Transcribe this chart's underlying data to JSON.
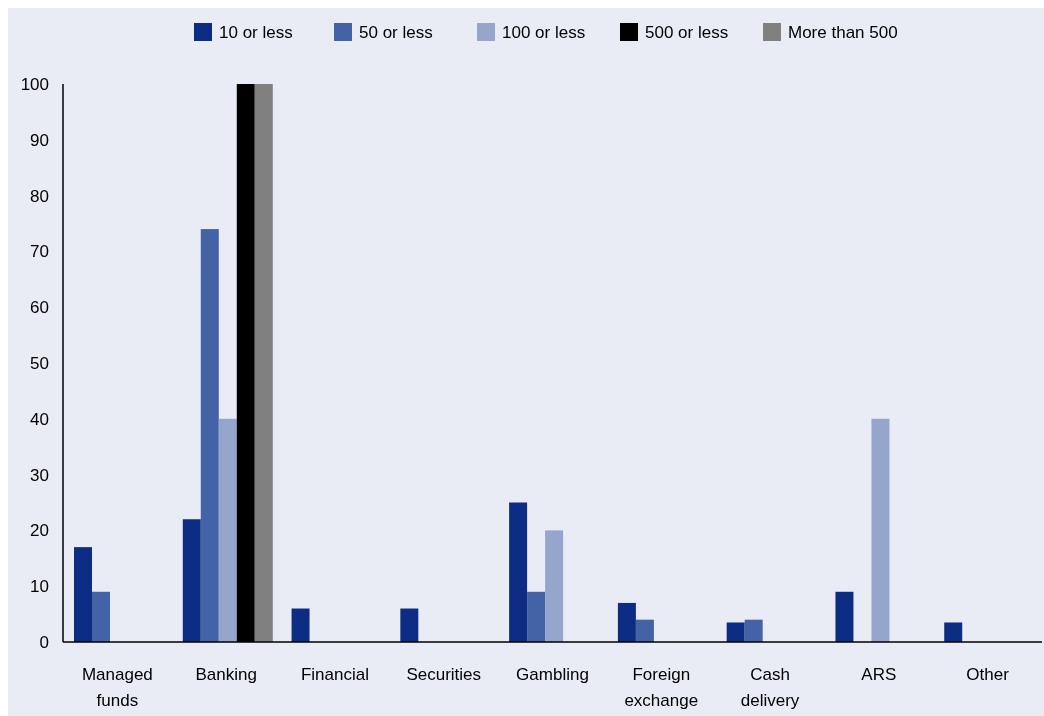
{
  "chart_data": {
    "type": "bar",
    "categories": [
      "Managed\nfunds",
      "Banking",
      "Financial",
      "Securities",
      "Gambling",
      "Foreign\nexchange",
      "Cash\ndelivery",
      "ARS",
      "Other"
    ],
    "series": [
      {
        "name": "10 or less",
        "color": "#0c2d83",
        "values": [
          17,
          22,
          6,
          6,
          25,
          7,
          3.5,
          9,
          3.5
        ]
      },
      {
        "name": "50 or less",
        "color": "#4462a6",
        "values": [
          9,
          74,
          null,
          null,
          9,
          4,
          4,
          null,
          null
        ]
      },
      {
        "name": "100 or less",
        "color": "#95a5cc",
        "values": [
          null,
          40,
          null,
          null,
          20,
          null,
          null,
          40,
          null
        ]
      },
      {
        "name": "500 or less",
        "color": "#000000",
        "values": [
          null,
          100,
          null,
          null,
          null,
          null,
          null,
          null,
          null
        ]
      },
      {
        "name": "More than 500",
        "color": "#808080",
        "values": [
          null,
          100,
          null,
          null,
          null,
          null,
          null,
          null,
          null
        ]
      }
    ],
    "ylim": [
      0,
      100
    ],
    "yticks": [
      0,
      10,
      20,
      30,
      40,
      50,
      60,
      70,
      80,
      90,
      100
    ],
    "grid": false,
    "legend": "top"
  }
}
